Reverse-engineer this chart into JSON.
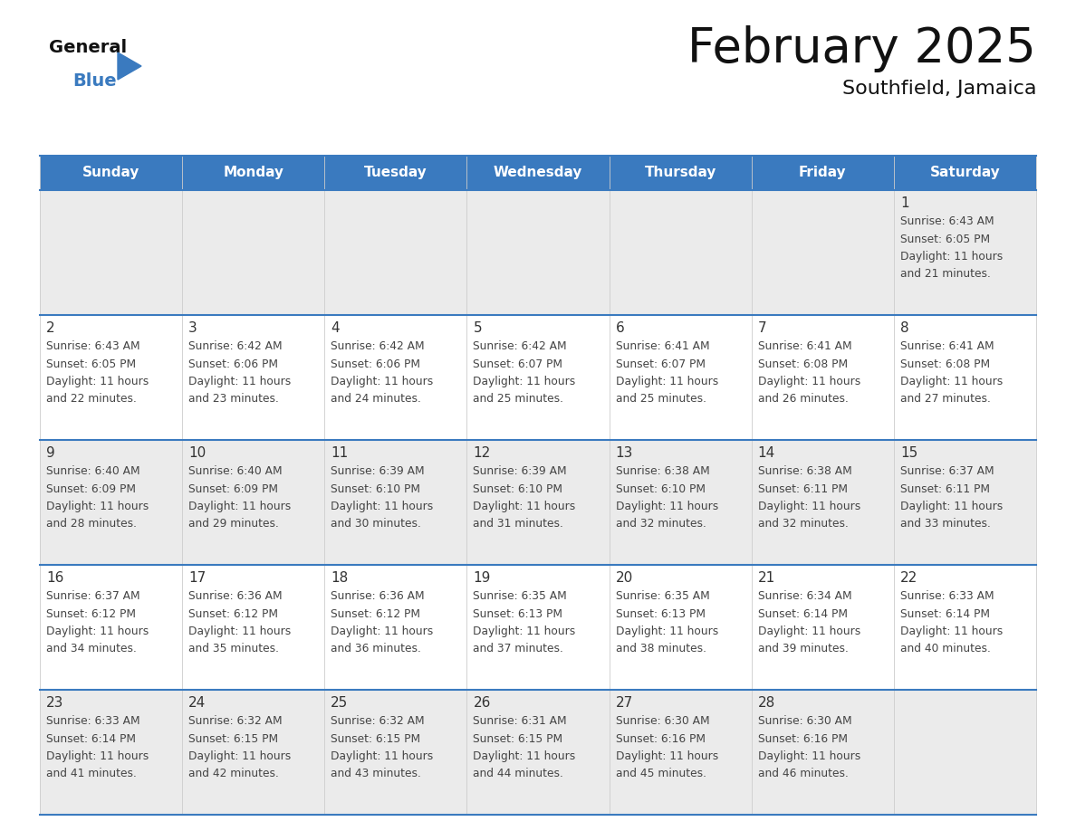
{
  "title": "February 2025",
  "subtitle": "Southfield, Jamaica",
  "header_bg": "#3a7abf",
  "header_text": "#ffffff",
  "day_names": [
    "Sunday",
    "Monday",
    "Tuesday",
    "Wednesday",
    "Thursday",
    "Friday",
    "Saturday"
  ],
  "cell_bg_odd": "#ebebeb",
  "cell_bg_even": "#ffffff",
  "divider_color": "#3a7abf",
  "date_color": "#333333",
  "text_color": "#444444",
  "calendar": [
    [
      null,
      null,
      null,
      null,
      null,
      null,
      1
    ],
    [
      2,
      3,
      4,
      5,
      6,
      7,
      8
    ],
    [
      9,
      10,
      11,
      12,
      13,
      14,
      15
    ],
    [
      16,
      17,
      18,
      19,
      20,
      21,
      22
    ],
    [
      23,
      24,
      25,
      26,
      27,
      28,
      null
    ]
  ],
  "sun_data": {
    "1": {
      "rise": "6:43 AM",
      "set": "6:05 PM",
      "hours": 11,
      "mins": 21
    },
    "2": {
      "rise": "6:43 AM",
      "set": "6:05 PM",
      "hours": 11,
      "mins": 22
    },
    "3": {
      "rise": "6:42 AM",
      "set": "6:06 PM",
      "hours": 11,
      "mins": 23
    },
    "4": {
      "rise": "6:42 AM",
      "set": "6:06 PM",
      "hours": 11,
      "mins": 24
    },
    "5": {
      "rise": "6:42 AM",
      "set": "6:07 PM",
      "hours": 11,
      "mins": 25
    },
    "6": {
      "rise": "6:41 AM",
      "set": "6:07 PM",
      "hours": 11,
      "mins": 25
    },
    "7": {
      "rise": "6:41 AM",
      "set": "6:08 PM",
      "hours": 11,
      "mins": 26
    },
    "8": {
      "rise": "6:41 AM",
      "set": "6:08 PM",
      "hours": 11,
      "mins": 27
    },
    "9": {
      "rise": "6:40 AM",
      "set": "6:09 PM",
      "hours": 11,
      "mins": 28
    },
    "10": {
      "rise": "6:40 AM",
      "set": "6:09 PM",
      "hours": 11,
      "mins": 29
    },
    "11": {
      "rise": "6:39 AM",
      "set": "6:10 PM",
      "hours": 11,
      "mins": 30
    },
    "12": {
      "rise": "6:39 AM",
      "set": "6:10 PM",
      "hours": 11,
      "mins": 31
    },
    "13": {
      "rise": "6:38 AM",
      "set": "6:10 PM",
      "hours": 11,
      "mins": 32
    },
    "14": {
      "rise": "6:38 AM",
      "set": "6:11 PM",
      "hours": 11,
      "mins": 32
    },
    "15": {
      "rise": "6:37 AM",
      "set": "6:11 PM",
      "hours": 11,
      "mins": 33
    },
    "16": {
      "rise": "6:37 AM",
      "set": "6:12 PM",
      "hours": 11,
      "mins": 34
    },
    "17": {
      "rise": "6:36 AM",
      "set": "6:12 PM",
      "hours": 11,
      "mins": 35
    },
    "18": {
      "rise": "6:36 AM",
      "set": "6:12 PM",
      "hours": 11,
      "mins": 36
    },
    "19": {
      "rise": "6:35 AM",
      "set": "6:13 PM",
      "hours": 11,
      "mins": 37
    },
    "20": {
      "rise": "6:35 AM",
      "set": "6:13 PM",
      "hours": 11,
      "mins": 38
    },
    "21": {
      "rise": "6:34 AM",
      "set": "6:14 PM",
      "hours": 11,
      "mins": 39
    },
    "22": {
      "rise": "6:33 AM",
      "set": "6:14 PM",
      "hours": 11,
      "mins": 40
    },
    "23": {
      "rise": "6:33 AM",
      "set": "6:14 PM",
      "hours": 11,
      "mins": 41
    },
    "24": {
      "rise": "6:32 AM",
      "set": "6:15 PM",
      "hours": 11,
      "mins": 42
    },
    "25": {
      "rise": "6:32 AM",
      "set": "6:15 PM",
      "hours": 11,
      "mins": 43
    },
    "26": {
      "rise": "6:31 AM",
      "set": "6:15 PM",
      "hours": 11,
      "mins": 44
    },
    "27": {
      "rise": "6:30 AM",
      "set": "6:16 PM",
      "hours": 11,
      "mins": 45
    },
    "28": {
      "rise": "6:30 AM",
      "set": "6:16 PM",
      "hours": 11,
      "mins": 46
    }
  },
  "logo_general_color": "#111111",
  "logo_blue_color": "#3a7abf",
  "logo_triangle_color": "#3a7abf",
  "fig_width": 11.88,
  "fig_height": 9.18,
  "dpi": 100
}
